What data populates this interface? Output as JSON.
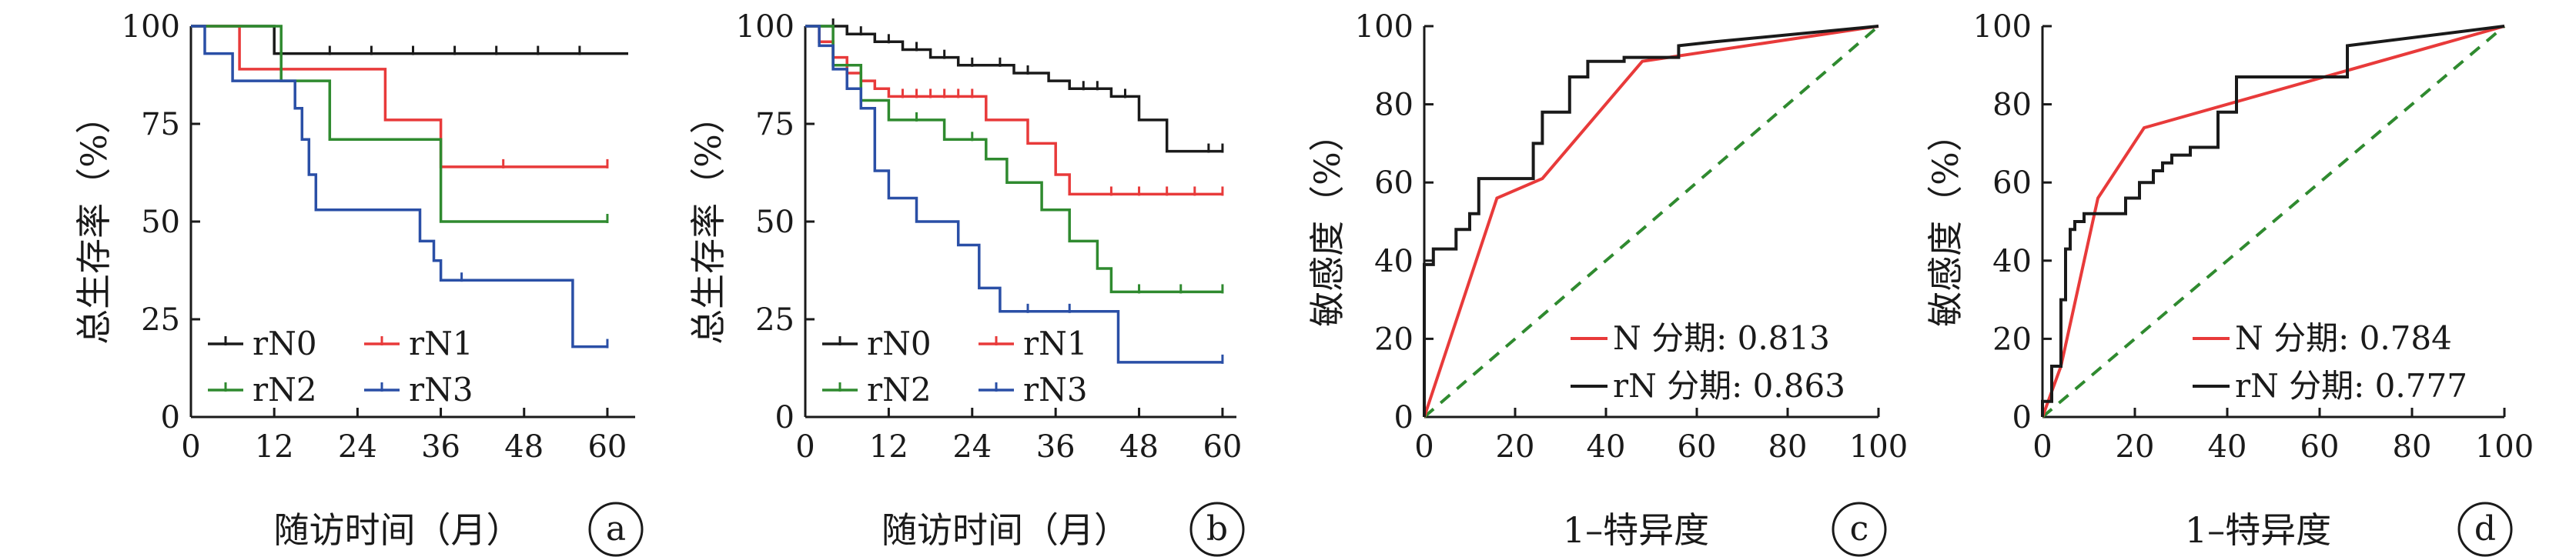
{
  "colors": {
    "rN0": "#1a1a1a",
    "rN1": "#e83a3a",
    "rN2": "#2f8a2f",
    "rN3": "#2a4fa6",
    "axis": "#1a1a1a",
    "diagonal": "#2f8a2f"
  },
  "chart_data": [
    {
      "type": "line",
      "panel_label": "a",
      "xlabel": "随访时间（月）",
      "ylabel": "总生存率（%）",
      "xlim": [
        0,
        64
      ],
      "ylim": [
        0,
        100
      ],
      "xticks": [
        0,
        12,
        24,
        36,
        48,
        60
      ],
      "yticks": [
        0,
        25,
        50,
        75,
        100
      ],
      "legend_position": "bottom-left",
      "legend_columns": 2,
      "series": [
        {
          "name": "rN0",
          "color_key": "rN0",
          "x": [
            0,
            12,
            12,
            63
          ],
          "y": [
            100,
            100,
            93,
            93
          ],
          "censor_x": [
            20,
            26,
            32,
            38,
            44,
            50,
            56
          ]
        },
        {
          "name": "rN1",
          "color_key": "rN1",
          "x": [
            0,
            7,
            7,
            28,
            28,
            36,
            36,
            60
          ],
          "y": [
            100,
            100,
            89,
            89,
            76,
            76,
            64,
            64
          ],
          "censor_x": [
            45,
            60
          ]
        },
        {
          "name": "rN2",
          "color_key": "rN2",
          "x": [
            0,
            13,
            13,
            20,
            20,
            36,
            36,
            60
          ],
          "y": [
            100,
            100,
            86,
            86,
            71,
            71,
            50,
            50
          ],
          "censor_x": [
            60
          ]
        },
        {
          "name": "rN3",
          "color_key": "rN3",
          "x": [
            0,
            2,
            2,
            6,
            6,
            15,
            15,
            16,
            16,
            17,
            17,
            18,
            18,
            33,
            33,
            35,
            35,
            36,
            36,
            55,
            55,
            60
          ],
          "y": [
            100,
            100,
            93,
            93,
            86,
            86,
            79,
            79,
            71,
            71,
            62,
            62,
            53,
            53,
            45,
            45,
            40,
            40,
            35,
            35,
            18,
            18
          ],
          "censor_x": [
            39,
            60
          ]
        }
      ],
      "legend": {
        "rN0": "rN0",
        "rN1": "rN1",
        "rN2": "rN2",
        "rN3": "rN3"
      }
    },
    {
      "type": "line",
      "panel_label": "b",
      "xlabel": "随访时间（月）",
      "ylabel": "总生存率（%）",
      "xlim": [
        0,
        62
      ],
      "ylim": [
        0,
        100
      ],
      "xticks": [
        0,
        12,
        24,
        36,
        48,
        60
      ],
      "yticks": [
        0,
        25,
        50,
        75,
        100
      ],
      "legend_position": "bottom-left",
      "legend_columns": 2,
      "series": [
        {
          "name": "rN0",
          "color_key": "rN0",
          "x": [
            0,
            6,
            6,
            10,
            10,
            14,
            14,
            18,
            18,
            22,
            22,
            30,
            30,
            35,
            35,
            38,
            38,
            44,
            44,
            48,
            48,
            52,
            52,
            60
          ],
          "y": [
            100,
            100,
            98,
            98,
            96,
            96,
            94,
            94,
            92,
            92,
            90,
            90,
            88,
            88,
            86,
            86,
            84,
            84,
            82,
            82,
            76,
            76,
            68,
            68
          ],
          "censor_x": [
            4,
            8,
            12,
            16,
            20,
            24,
            28,
            32,
            40,
            42,
            46,
            58,
            60
          ]
        },
        {
          "name": "rN1",
          "color_key": "rN1",
          "x": [
            0,
            2,
            2,
            4,
            4,
            6,
            6,
            8,
            8,
            10,
            10,
            12,
            12,
            26,
            26,
            32,
            32,
            36,
            36,
            38,
            38,
            60
          ],
          "y": [
            100,
            100,
            96,
            96,
            92,
            92,
            88,
            88,
            86,
            86,
            84,
            84,
            82,
            82,
            76,
            76,
            70,
            70,
            62,
            62,
            57,
            57
          ],
          "censor_x": [
            14,
            16,
            18,
            20,
            22,
            24,
            44,
            48,
            52,
            56,
            60
          ]
        },
        {
          "name": "rN2",
          "color_key": "rN2",
          "x": [
            0,
            4,
            4,
            8,
            8,
            12,
            12,
            20,
            20,
            26,
            26,
            29,
            29,
            34,
            34,
            38,
            38,
            42,
            42,
            44,
            44,
            60
          ],
          "y": [
            100,
            100,
            90,
            90,
            81,
            81,
            76,
            76,
            71,
            71,
            66,
            66,
            60,
            60,
            53,
            53,
            45,
            45,
            38,
            38,
            32,
            32
          ],
          "censor_x": [
            16,
            24,
            48,
            54,
            60
          ]
        },
        {
          "name": "rN3",
          "color_key": "rN3",
          "x": [
            0,
            2,
            2,
            4,
            4,
            6,
            6,
            8,
            8,
            10,
            10,
            12,
            12,
            16,
            16,
            22,
            22,
            25,
            25,
            28,
            28,
            45,
            45,
            60
          ],
          "y": [
            100,
            100,
            95,
            95,
            89,
            89,
            84,
            84,
            79,
            79,
            63,
            63,
            56,
            56,
            50,
            50,
            44,
            44,
            33,
            33,
            27,
            27,
            14,
            14
          ],
          "censor_x": [
            32,
            38,
            60
          ]
        }
      ],
      "legend": {
        "rN0": "rN0",
        "rN1": "rN1",
        "rN2": "rN2",
        "rN3": "rN3"
      }
    },
    {
      "type": "line",
      "panel_label": "c",
      "xlabel": "1–特异度",
      "ylabel": "敏感度（%）",
      "xlim": [
        0,
        100
      ],
      "ylim": [
        0,
        100
      ],
      "xticks": [
        0,
        20,
        40,
        60,
        80,
        100
      ],
      "yticks": [
        0,
        20,
        40,
        60,
        80,
        100
      ],
      "legend_position": "bottom-right",
      "legend_columns": 1,
      "diagonal": true,
      "series": [
        {
          "name": "N 分期: 0.813",
          "color_key": "rN1",
          "x": [
            0,
            16,
            26,
            48,
            100
          ],
          "y": [
            0,
            56,
            61,
            91,
            100
          ]
        },
        {
          "name": "rN 分期: 0.863",
          "color_key": "rN0",
          "x": [
            0,
            0,
            2,
            2,
            7,
            7,
            10,
            10,
            12,
            12,
            24,
            24,
            26,
            26,
            32,
            32,
            36,
            36,
            44,
            44,
            56,
            56,
            64,
            100
          ],
          "y": [
            0,
            39,
            39,
            43,
            43,
            48,
            48,
            52,
            52,
            61,
            61,
            70,
            70,
            78,
            78,
            87,
            87,
            91,
            91,
            92,
            92,
            95,
            96,
            100
          ]
        }
      ]
    },
    {
      "type": "line",
      "panel_label": "d",
      "xlabel": "1–特异度",
      "ylabel": "敏感度（%）",
      "xlim": [
        0,
        100
      ],
      "ylim": [
        0,
        100
      ],
      "xticks": [
        0,
        20,
        40,
        60,
        80,
        100
      ],
      "yticks": [
        0,
        20,
        40,
        60,
        80,
        100
      ],
      "legend_position": "bottom-right",
      "legend_columns": 1,
      "diagonal": true,
      "series": [
        {
          "name": "N 分期: 0.784",
          "color_key": "rN1",
          "x": [
            0,
            4,
            12,
            22,
            100
          ],
          "y": [
            0,
            13,
            56,
            74,
            100
          ]
        },
        {
          "name": "rN 分期: 0.777",
          "color_key": "rN0",
          "x": [
            0,
            0,
            2,
            2,
            4,
            4,
            5,
            5,
            6,
            6,
            7,
            7,
            9,
            9,
            11,
            11,
            18,
            18,
            21,
            21,
            24,
            24,
            26,
            26,
            28,
            28,
            32,
            32,
            38,
            38,
            42,
            42,
            66,
            66,
            100
          ],
          "y": [
            0,
            4,
            4,
            13,
            13,
            30,
            30,
            43,
            43,
            48,
            48,
            50,
            50,
            52,
            52,
            52,
            52,
            56,
            56,
            60,
            60,
            63,
            63,
            65,
            65,
            67,
            67,
            69,
            69,
            78,
            78,
            87,
            87,
            95,
            100
          ]
        }
      ]
    }
  ]
}
